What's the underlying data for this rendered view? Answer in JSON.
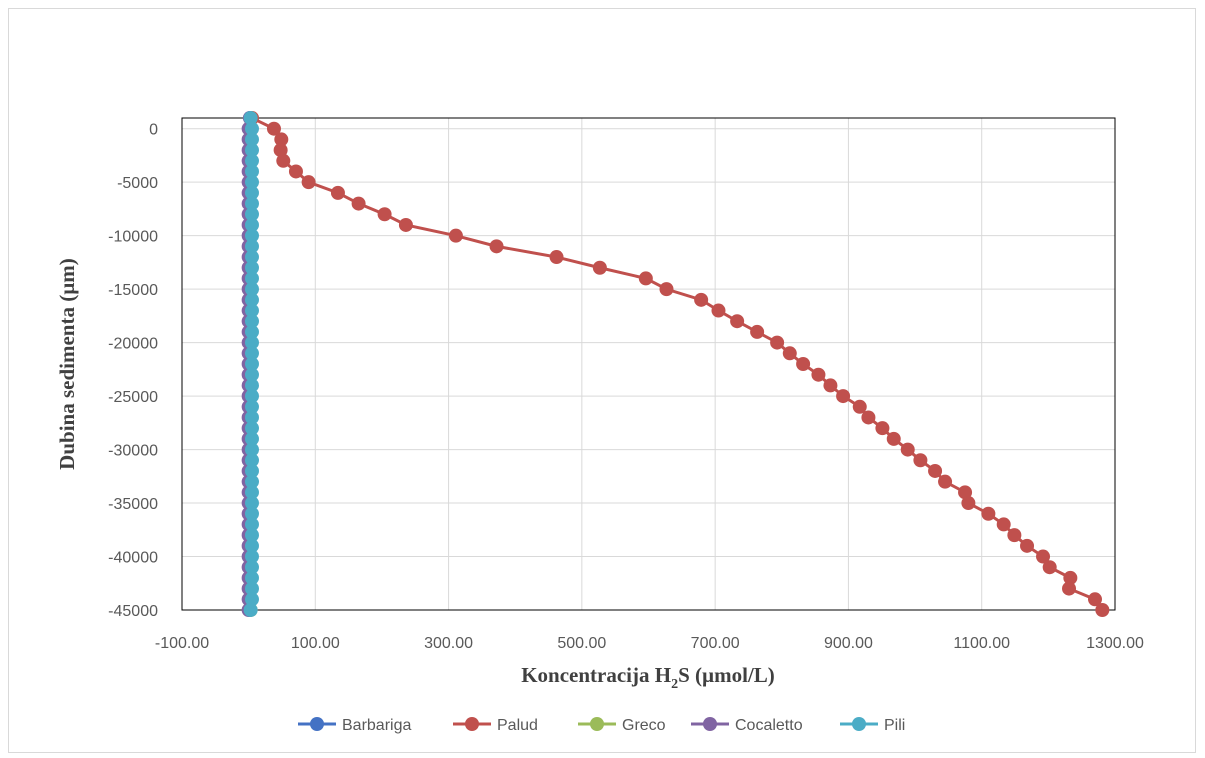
{
  "chart_data": {
    "type": "scatter",
    "title": "",
    "xlabel_main": "Koncentracija H",
    "xlabel_sub": "2",
    "xlabel_tail": "S (µmol/L)",
    "ylabel": "Dubina sedimenta (µm)",
    "xlim": [
      -100,
      1300
    ],
    "ylim": [
      -45000,
      1000
    ],
    "x_ticks": [
      "-100.00",
      "100.00",
      "300.00",
      "500.00",
      "700.00",
      "900.00",
      "1100.00",
      "1300.00"
    ],
    "x_tick_values": [
      -100,
      100,
      300,
      500,
      700,
      900,
      1100,
      1300
    ],
    "y_ticks": [
      "0",
      "-5000",
      "-10000",
      "-15000",
      "-20000",
      "-25000",
      "-30000",
      "-35000",
      "-40000",
      "-45000"
    ],
    "y_tick_values": [
      0,
      -5000,
      -10000,
      -15000,
      -20000,
      -25000,
      -30000,
      -35000,
      -40000,
      -45000
    ],
    "grid": true,
    "legend_position": "bottom",
    "colors": {
      "Barbariga": "#4472c4",
      "Palud": "#c0504d",
      "Greco": "#9bbb59",
      "Cocaletto": "#8064a2",
      "Pili": "#4bacc6",
      "gridline": "#d9d9d9",
      "axis": "#000000"
    },
    "depths": [
      1000,
      0,
      -1000,
      -2000,
      -3000,
      -4000,
      -5000,
      -6000,
      -7000,
      -8000,
      -9000,
      -10000,
      -11000,
      -12000,
      -13000,
      -14000,
      -15000,
      -16000,
      -17000,
      -18000,
      -19000,
      -20000,
      -21000,
      -22000,
      -23000,
      -24000,
      -25000,
      -26000,
      -27000,
      -28000,
      -29000,
      -30000,
      -31000,
      -32000,
      -33000,
      -34000,
      -35000,
      -36000,
      -37000,
      -38000,
      -39000,
      -40000,
      -41000,
      -42000,
      -43000,
      -44000,
      -45000
    ],
    "series": [
      {
        "name": "Barbariga",
        "x": [
          2,
          2,
          2,
          2,
          2,
          2,
          2,
          2,
          2,
          2,
          2,
          2,
          2,
          2,
          2,
          2,
          2,
          2,
          2,
          2,
          2,
          2,
          2,
          2,
          2,
          2,
          2,
          2,
          2,
          2,
          2,
          2,
          2,
          2,
          2,
          2,
          2,
          2,
          2,
          2,
          2,
          2,
          2,
          2,
          2,
          2,
          2
        ]
      },
      {
        "name": "Palud",
        "x": [
          5,
          38,
          49,
          48,
          52,
          71,
          90,
          134,
          165,
          204,
          236,
          311,
          372,
          462,
          527,
          596,
          627,
          679,
          705,
          733,
          763,
          793,
          812,
          832,
          855,
          873,
          892,
          917,
          930,
          951,
          968,
          989,
          1008,
          1030,
          1045,
          1075,
          1080,
          1110,
          1133,
          1149,
          1168,
          1192,
          1202,
          1233,
          1231,
          1270,
          1281
        ]
      },
      {
        "name": "Greco",
        "x": [
          3,
          3,
          3,
          3,
          3,
          3,
          3,
          3,
          3,
          3,
          3,
          3,
          3,
          3,
          3,
          3,
          3,
          3,
          3,
          3,
          3,
          3,
          3,
          3,
          3,
          3,
          3,
          3,
          3,
          3,
          3,
          3,
          3,
          3,
          3,
          3,
          3,
          3,
          3,
          3,
          3,
          3,
          3,
          3,
          3,
          3,
          3
        ]
      },
      {
        "name": "Cocaletto",
        "x": [
          2,
          0,
          0,
          0,
          0,
          0,
          0,
          0,
          0,
          0,
          0,
          0,
          0,
          0,
          0,
          0,
          0,
          0,
          0,
          0,
          0,
          0,
          0,
          0,
          0,
          0,
          0,
          0,
          0,
          0,
          0,
          0,
          0,
          0,
          0,
          0,
          0,
          0,
          0,
          0,
          0,
          0,
          0,
          0,
          0,
          0,
          0
        ]
      },
      {
        "name": "Pili",
        "x": [
          3,
          5,
          5,
          5,
          5,
          5,
          5,
          5,
          5,
          5,
          5,
          5,
          5,
          5,
          5,
          5,
          5,
          5,
          5,
          5,
          5,
          5,
          5,
          5,
          5,
          5,
          5,
          5,
          5,
          5,
          5,
          5,
          5,
          5,
          5,
          5,
          5,
          5,
          5,
          5,
          5,
          5,
          5,
          5,
          5,
          5,
          3
        ]
      }
    ]
  }
}
